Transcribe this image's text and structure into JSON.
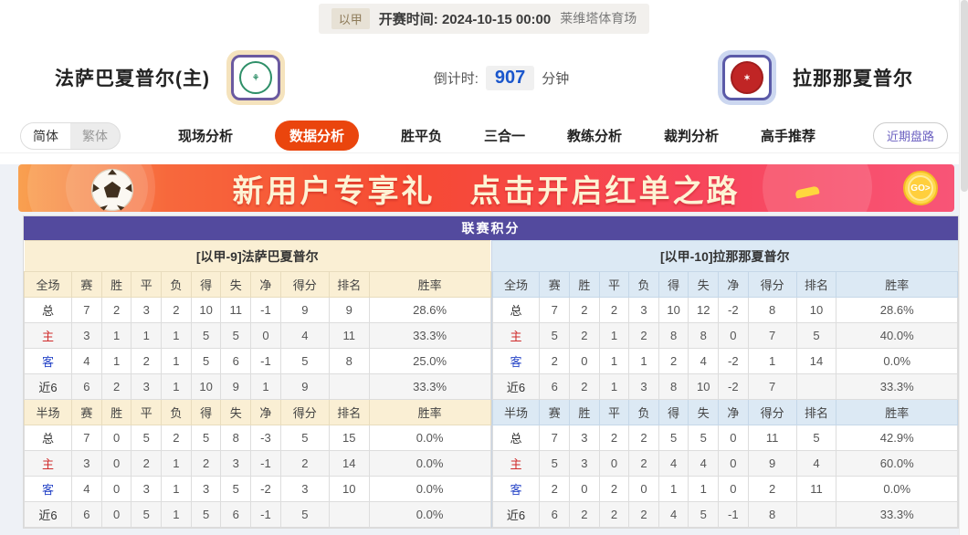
{
  "top_bar": {
    "league": "以甲",
    "kickoff_label": "开赛时间:",
    "kickoff_time": "2024-10-15 00:00",
    "venue": "莱维塔体育场"
  },
  "header": {
    "home_name": "法萨巴夏普尔(主)",
    "countdown_label": "倒计时:",
    "countdown_value": "907",
    "countdown_unit": "分钟",
    "away_name": "拉那那夏普尔"
  },
  "nav": {
    "lang_simplified": "简体",
    "lang_traditional": "繁体",
    "tabs": [
      {
        "label": "现场分析",
        "active": false
      },
      {
        "label": "数据分析",
        "active": true
      },
      {
        "label": "胜平负",
        "active": false
      },
      {
        "label": "三合一",
        "active": false
      },
      {
        "label": "教练分析",
        "active": false
      },
      {
        "label": "裁判分析",
        "active": false
      },
      {
        "label": "高手推荐",
        "active": false
      }
    ],
    "recent_button": "近期盘路"
  },
  "banner": {
    "text_left": "新用户专享礼",
    "text_right": "点击开启红单之路",
    "go_label": "GO>"
  },
  "league_table": {
    "title": "联赛积分",
    "full_columns": [
      "全场",
      "赛",
      "胜",
      "平",
      "负",
      "得",
      "失",
      "净",
      "得分",
      "排名",
      "胜率"
    ],
    "half_columns": [
      "半场",
      "赛",
      "胜",
      "平",
      "负",
      "得",
      "失",
      "净",
      "得分",
      "排名",
      "胜率"
    ],
    "sides": [
      {
        "team_header": "[以甲-9]法萨巴夏普尔",
        "theme": "cream",
        "full_rows": [
          {
            "label": "总",
            "type": "total",
            "values": [
              "7",
              "2",
              "3",
              "2",
              "10",
              "11",
              "-1",
              "9",
              "9",
              "28.6%"
            ]
          },
          {
            "label": "主",
            "type": "home",
            "values": [
              "3",
              "1",
              "1",
              "1",
              "5",
              "5",
              "0",
              "4",
              "11",
              "33.3%"
            ]
          },
          {
            "label": "客",
            "type": "away",
            "values": [
              "4",
              "1",
              "2",
              "1",
              "5",
              "6",
              "-1",
              "5",
              "8",
              "25.0%"
            ]
          },
          {
            "label": "近6",
            "type": "recent",
            "values": [
              "6",
              "2",
              "3",
              "1",
              "10",
              "9",
              "1",
              "9",
              "",
              "33.3%"
            ]
          }
        ],
        "half_rows": [
          {
            "label": "总",
            "type": "total",
            "values": [
              "7",
              "0",
              "5",
              "2",
              "5",
              "8",
              "-3",
              "5",
              "15",
              "0.0%"
            ]
          },
          {
            "label": "主",
            "type": "home",
            "values": [
              "3",
              "0",
              "2",
              "1",
              "2",
              "3",
              "-1",
              "2",
              "14",
              "0.0%"
            ]
          },
          {
            "label": "客",
            "type": "away",
            "values": [
              "4",
              "0",
              "3",
              "1",
              "3",
              "5",
              "-2",
              "3",
              "10",
              "0.0%"
            ]
          },
          {
            "label": "近6",
            "type": "recent",
            "values": [
              "6",
              "0",
              "5",
              "1",
              "5",
              "6",
              "-1",
              "5",
              "",
              "0.0%"
            ]
          }
        ]
      },
      {
        "team_header": "[以甲-10]拉那那夏普尔",
        "theme": "blue",
        "full_rows": [
          {
            "label": "总",
            "type": "total",
            "values": [
              "7",
              "2",
              "2",
              "3",
              "10",
              "12",
              "-2",
              "8",
              "10",
              "28.6%"
            ]
          },
          {
            "label": "主",
            "type": "home",
            "values": [
              "5",
              "2",
              "1",
              "2",
              "8",
              "8",
              "0",
              "7",
              "5",
              "40.0%"
            ]
          },
          {
            "label": "客",
            "type": "away",
            "values": [
              "2",
              "0",
              "1",
              "1",
              "2",
              "4",
              "-2",
              "1",
              "14",
              "0.0%"
            ]
          },
          {
            "label": "近6",
            "type": "recent",
            "values": [
              "6",
              "2",
              "1",
              "3",
              "8",
              "10",
              "-2",
              "7",
              "",
              "33.3%"
            ]
          }
        ],
        "half_rows": [
          {
            "label": "总",
            "type": "total",
            "values": [
              "7",
              "3",
              "2",
              "2",
              "5",
              "5",
              "0",
              "11",
              "5",
              "42.9%"
            ]
          },
          {
            "label": "主",
            "type": "home",
            "values": [
              "5",
              "3",
              "0",
              "2",
              "4",
              "4",
              "0",
              "9",
              "4",
              "60.0%"
            ]
          },
          {
            "label": "客",
            "type": "away",
            "values": [
              "2",
              "0",
              "2",
              "0",
              "1",
              "1",
              "0",
              "2",
              "11",
              "0.0%"
            ]
          },
          {
            "label": "近6",
            "type": "recent",
            "values": [
              "6",
              "2",
              "2",
              "2",
              "4",
              "5",
              "-1",
              "8",
              "",
              "33.3%"
            ]
          }
        ]
      }
    ]
  },
  "colors": {
    "accent_purple": "#534a9e",
    "active_tab_orange": "#ea450d",
    "cream_panel": "#faefd4",
    "blue_panel": "#dce9f4",
    "home_label_red": "#d02b2b",
    "away_label_blue": "#2947c8",
    "countdown_blue": "#1a56cc"
  }
}
